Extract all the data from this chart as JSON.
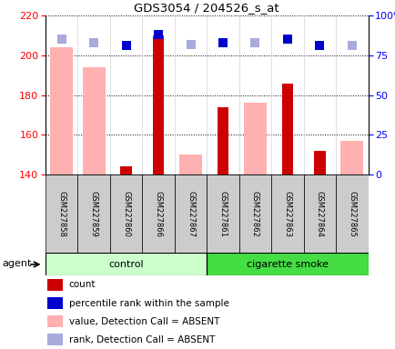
{
  "title": "GDS3054 / 204526_s_at",
  "samples": [
    "GSM227858",
    "GSM227859",
    "GSM227860",
    "GSM227866",
    "GSM227867",
    "GSM227861",
    "GSM227862",
    "GSM227863",
    "GSM227864",
    "GSM227865"
  ],
  "count_values": [
    null,
    null,
    144,
    210,
    null,
    174,
    null,
    186,
    152,
    null
  ],
  "count_color": "#cc0000",
  "value_absent_values": [
    204,
    194,
    null,
    null,
    150,
    null,
    176,
    null,
    null,
    157
  ],
  "value_absent_color": "#ffb0b0",
  "rank_present_values": [
    null,
    null,
    81,
    88,
    null,
    83,
    null,
    85,
    81,
    null
  ],
  "rank_present_color": "#0000cc",
  "rank_absent_values": [
    85,
    83,
    null,
    null,
    82,
    null,
    83,
    null,
    null,
    81
  ],
  "rank_absent_color": "#aaaadd",
  "ylim_left": [
    140,
    220
  ],
  "ylim_right": [
    0,
    100
  ],
  "yticks_left": [
    140,
    160,
    180,
    200,
    220
  ],
  "yticks_right": [
    0,
    25,
    50,
    75,
    100
  ],
  "ytick_labels_right": [
    "0",
    "25",
    "50",
    "75",
    "100%"
  ],
  "control_label": "control",
  "smoke_label": "cigarette smoke",
  "agent_label": "agent",
  "control_color": "#ccffcc",
  "smoke_color": "#44dd44",
  "legend_items": [
    {
      "label": "count",
      "color": "#cc0000"
    },
    {
      "label": "percentile rank within the sample",
      "color": "#0000cc"
    },
    {
      "label": "value, Detection Call = ABSENT",
      "color": "#ffb0b0"
    },
    {
      "label": "rank, Detection Call = ABSENT",
      "color": "#aaaadd"
    }
  ],
  "bar_width": 0.5,
  "marker_size": 7
}
